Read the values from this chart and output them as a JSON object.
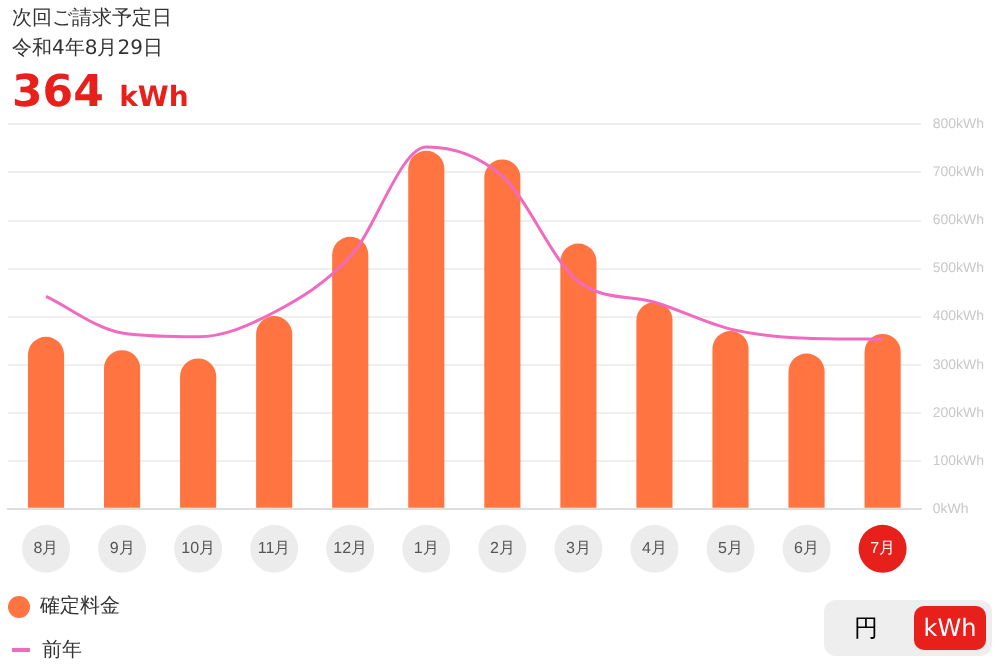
{
  "chart_data": {
    "type": "bar",
    "title": "次回ご請求予定日",
    "subtitle": "令和4年8月29日",
    "annotations": [
      "364 kWh",
      "円",
      "kWh"
    ],
    "categories": [
      "8月",
      "9月",
      "10月",
      "11月",
      "12月",
      "1月",
      "2月",
      "3月",
      "4月",
      "5月",
      "6月",
      "7月"
    ],
    "series": [
      {
        "name": "確定料金",
        "color": "#ff7440",
        "values": [
          358,
          330,
          313,
          401,
          566,
          745,
          727,
          552,
          430,
          370,
          323,
          364
        ]
      },
      {
        "name": "前年",
        "type": "line",
        "color": "#f06ac0",
        "values": [
          442,
          366,
          358,
          409,
          525,
          753,
          692,
          473,
          430,
          374,
          355,
          353
        ]
      }
    ],
    "ylim": [
      0,
      800
    ],
    "yticks": [
      {
        "value": 0,
        "label": "0kWh"
      },
      {
        "value": 100,
        "label": "100kWh"
      },
      {
        "value": 200,
        "label": "200kWh"
      },
      {
        "value": 300,
        "label": "300kWh"
      },
      {
        "value": 400,
        "label": "400kWh"
      },
      {
        "value": 500,
        "label": "500kWh"
      },
      {
        "value": 600,
        "label": "600kWh"
      },
      {
        "value": 700,
        "label": "700kWh"
      },
      {
        "value": 800,
        "label": "800kWh"
      }
    ],
    "grid": "y",
    "legend": "bottom left",
    "marker": "none",
    "line_style": "solid"
  }
}
